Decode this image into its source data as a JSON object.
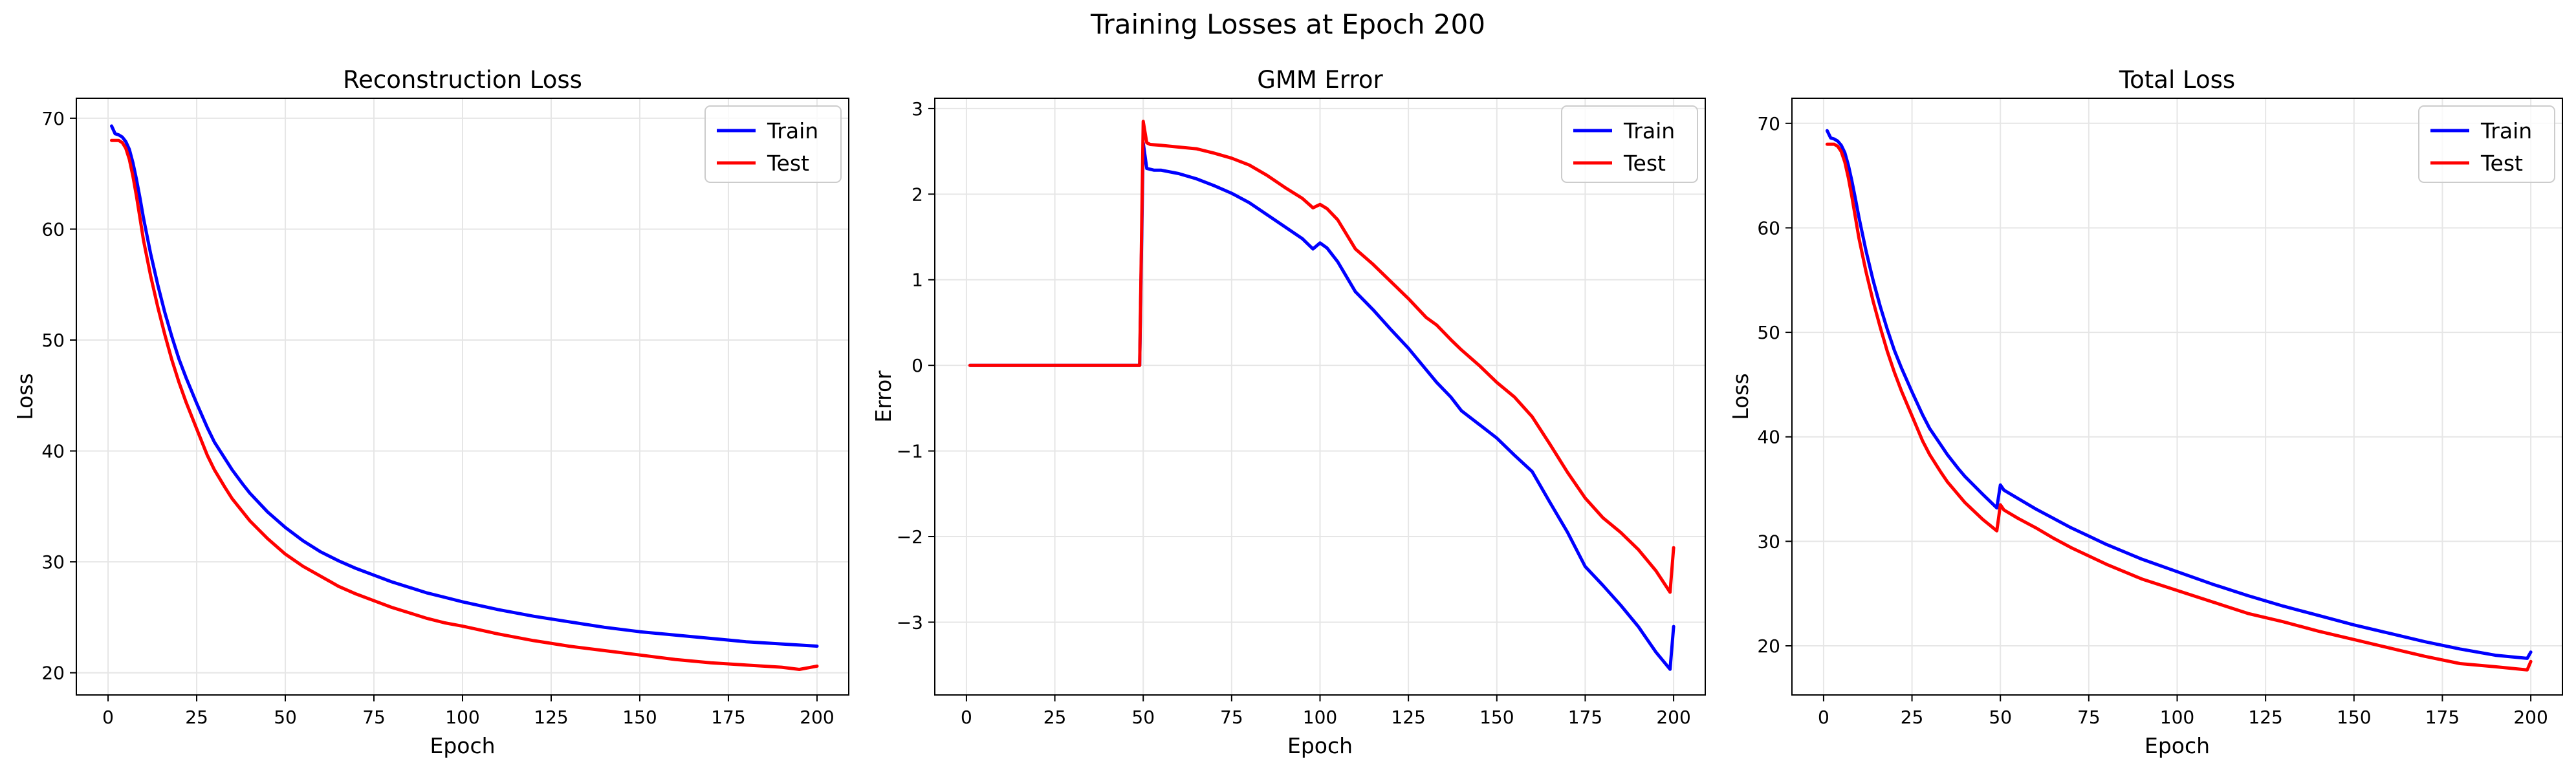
{
  "figure": {
    "suptitle": "Training Losses at Epoch 200"
  },
  "colors": {
    "train": "#0000ff",
    "test": "#ff0000",
    "grid": "#e6e6e6",
    "spine": "#000000"
  },
  "chart_data": [
    {
      "type": "line",
      "title": "Reconstruction Loss",
      "xlabel": "Epoch",
      "ylabel": "Loss",
      "xlim": [
        -8.95,
        208.95
      ],
      "ylim": [
        18.0,
        71.8
      ],
      "xticks": [
        0,
        25,
        50,
        75,
        100,
        125,
        150,
        175,
        200
      ],
      "yticks": [
        20,
        30,
        40,
        50,
        60,
        70
      ],
      "grid": true,
      "legend": {
        "position": "top-right",
        "entries": [
          "Train",
          "Test"
        ]
      },
      "series": [
        {
          "name": "Train",
          "x": [
            1,
            2,
            3,
            4,
            5,
            6,
            7,
            8,
            9,
            10,
            12,
            14,
            16,
            18,
            20,
            22,
            25,
            28,
            30,
            33,
            35,
            38,
            40,
            45,
            50,
            55,
            60,
            65,
            70,
            75,
            80,
            85,
            90,
            95,
            100,
            110,
            120,
            130,
            140,
            150,
            160,
            170,
            180,
            190,
            200
          ],
          "y": [
            69.3,
            68.6,
            68.5,
            68.3,
            67.9,
            67.2,
            66.0,
            64.5,
            62.8,
            61.0,
            57.8,
            55.0,
            52.5,
            50.3,
            48.3,
            46.6,
            44.3,
            42.1,
            40.8,
            39.3,
            38.3,
            37.0,
            36.2,
            34.5,
            33.1,
            31.9,
            30.9,
            30.1,
            29.4,
            28.8,
            28.2,
            27.7,
            27.2,
            26.8,
            26.4,
            25.7,
            25.1,
            24.6,
            24.1,
            23.7,
            23.4,
            23.1,
            22.8,
            22.6,
            22.4
          ]
        },
        {
          "name": "Test",
          "x": [
            1,
            2,
            3,
            4,
            5,
            6,
            7,
            8,
            9,
            10,
            12,
            14,
            16,
            18,
            20,
            22,
            25,
            28,
            30,
            33,
            35,
            38,
            40,
            45,
            50,
            55,
            60,
            65,
            70,
            75,
            80,
            85,
            90,
            95,
            100,
            110,
            120,
            130,
            140,
            150,
            160,
            170,
            180,
            190,
            195,
            200
          ],
          "y": [
            68.0,
            68.0,
            68.0,
            67.8,
            67.3,
            66.3,
            64.8,
            63.0,
            61.0,
            59.0,
            55.8,
            53.0,
            50.5,
            48.2,
            46.2,
            44.4,
            42.0,
            39.6,
            38.3,
            36.7,
            35.7,
            34.5,
            33.7,
            32.1,
            30.7,
            29.6,
            28.7,
            27.8,
            27.1,
            26.5,
            25.9,
            25.4,
            24.9,
            24.5,
            24.2,
            23.5,
            22.9,
            22.4,
            22.0,
            21.6,
            21.2,
            20.9,
            20.7,
            20.5,
            20.3,
            20.6
          ]
        }
      ]
    },
    {
      "type": "line",
      "title": "GMM Error",
      "xlabel": "Epoch",
      "ylabel": "Error",
      "xlim": [
        -8.95,
        208.95
      ],
      "ylim": [
        -3.85,
        3.12
      ],
      "xticks": [
        0,
        25,
        50,
        75,
        100,
        125,
        150,
        175,
        200
      ],
      "yticks": [
        -3,
        -2,
        -1,
        0,
        1,
        2,
        3
      ],
      "grid": true,
      "legend": {
        "position": "top-right",
        "entries": [
          "Train",
          "Test"
        ]
      },
      "series": [
        {
          "name": "Train",
          "x": [
            1,
            49,
            50,
            51,
            53,
            55,
            60,
            65,
            70,
            75,
            80,
            85,
            90,
            95,
            98,
            100,
            102,
            105,
            110,
            115,
            120,
            125,
            130,
            133,
            137,
            140,
            145,
            150,
            155,
            160,
            165,
            170,
            175,
            180,
            185,
            190,
            195,
            199,
            200
          ],
          "y": [
            0.0,
            0.0,
            2.6,
            2.3,
            2.28,
            2.28,
            2.24,
            2.18,
            2.1,
            2.01,
            1.9,
            1.76,
            1.62,
            1.48,
            1.36,
            1.43,
            1.37,
            1.21,
            0.86,
            0.65,
            0.42,
            0.2,
            -0.05,
            -0.2,
            -0.37,
            -0.53,
            -0.69,
            -0.85,
            -1.05,
            -1.24,
            -1.6,
            -1.95,
            -2.35,
            -2.57,
            -2.8,
            -3.05,
            -3.35,
            -3.55,
            -3.05
          ]
        },
        {
          "name": "Test",
          "x": [
            1,
            49,
            50,
            51,
            52,
            55,
            60,
            65,
            70,
            75,
            80,
            85,
            90,
            95,
            98,
            100,
            102,
            105,
            110,
            115,
            120,
            125,
            130,
            133,
            137,
            140,
            145,
            150,
            155,
            160,
            165,
            170,
            175,
            180,
            185,
            190,
            195,
            199,
            200
          ],
          "y": [
            0.0,
            0.0,
            2.85,
            2.6,
            2.58,
            2.57,
            2.55,
            2.53,
            2.48,
            2.42,
            2.34,
            2.22,
            2.08,
            1.95,
            1.84,
            1.88,
            1.83,
            1.7,
            1.36,
            1.18,
            0.98,
            0.78,
            0.56,
            0.47,
            0.3,
            0.18,
            0.0,
            -0.2,
            -0.37,
            -0.6,
            -0.92,
            -1.25,
            -1.55,
            -1.78,
            -1.95,
            -2.15,
            -2.4,
            -2.65,
            -2.13
          ]
        }
      ]
    },
    {
      "type": "line",
      "title": "Total Loss",
      "xlabel": "Epoch",
      "ylabel": "Loss",
      "xlim": [
        -8.95,
        208.95
      ],
      "ylim": [
        15.3,
        72.4
      ],
      "xticks": [
        0,
        25,
        50,
        75,
        100,
        125,
        150,
        175,
        200
      ],
      "yticks": [
        20,
        30,
        40,
        50,
        60,
        70
      ],
      "grid": true,
      "legend": {
        "position": "top-right",
        "entries": [
          "Train",
          "Test"
        ]
      },
      "series": [
        {
          "name": "Train",
          "x": [
            1,
            2,
            3,
            4,
            5,
            6,
            7,
            8,
            9,
            10,
            12,
            14,
            16,
            18,
            20,
            22,
            25,
            28,
            30,
            33,
            35,
            38,
            40,
            45,
            49,
            50,
            51,
            55,
            60,
            65,
            70,
            75,
            80,
            90,
            100,
            110,
            120,
            130,
            140,
            150,
            160,
            170,
            180,
            190,
            199,
            200
          ],
          "y": [
            69.3,
            68.6,
            68.5,
            68.3,
            67.9,
            67.2,
            66.0,
            64.5,
            62.8,
            61.0,
            57.8,
            55.0,
            52.5,
            50.3,
            48.3,
            46.6,
            44.3,
            42.1,
            40.8,
            39.3,
            38.3,
            37.0,
            36.2,
            34.5,
            33.2,
            35.4,
            34.9,
            34.1,
            33.1,
            32.2,
            31.3,
            30.5,
            29.7,
            28.3,
            27.1,
            25.9,
            24.8,
            23.8,
            22.9,
            22.0,
            21.2,
            20.4,
            19.7,
            19.1,
            18.8,
            19.4
          ]
        },
        {
          "name": "Test",
          "x": [
            1,
            2,
            3,
            4,
            5,
            6,
            7,
            8,
            9,
            10,
            12,
            14,
            16,
            18,
            20,
            22,
            25,
            28,
            30,
            33,
            35,
            38,
            40,
            45,
            49,
            50,
            51,
            55,
            60,
            65,
            70,
            75,
            80,
            90,
            100,
            110,
            120,
            130,
            140,
            150,
            160,
            170,
            180,
            190,
            199,
            200
          ],
          "y": [
            68.0,
            68.0,
            68.0,
            67.8,
            67.3,
            66.3,
            64.8,
            63.0,
            61.0,
            59.0,
            55.8,
            53.0,
            50.5,
            48.2,
            46.2,
            44.4,
            42.0,
            39.6,
            38.3,
            36.7,
            35.7,
            34.5,
            33.7,
            32.1,
            31.0,
            33.5,
            33.0,
            32.2,
            31.3,
            30.3,
            29.4,
            28.6,
            27.8,
            26.4,
            25.3,
            24.2,
            23.1,
            22.3,
            21.4,
            20.6,
            19.8,
            19.0,
            18.3,
            18.0,
            17.7,
            18.5
          ]
        }
      ]
    }
  ]
}
